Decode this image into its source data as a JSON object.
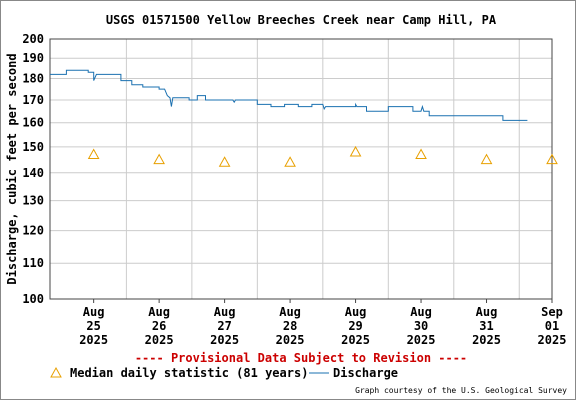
{
  "chart_data": {
    "type": "line",
    "title": "USGS 01571500 Yellow Breeches Creek near Camp Hill, PA",
    "ylabel": "Discharge, cubic feet per second",
    "xlabel": "",
    "y_scale": "log",
    "ylim": [
      100,
      200
    ],
    "y_ticks": [
      "100",
      "110",
      "120",
      "130",
      "140",
      "150",
      "160",
      "170",
      "180",
      "190",
      "200"
    ],
    "x_domain_days": [
      "2025-08-24T20:00",
      "2025-09-01T12:00"
    ],
    "x_ticks": [
      {
        "date": "2025-08-25T12:00",
        "label": [
          "Aug",
          "25",
          "2025"
        ]
      },
      {
        "date": "2025-08-26T12:00",
        "label": [
          "Aug",
          "26",
          "2025"
        ]
      },
      {
        "date": "2025-08-27T12:00",
        "label": [
          "Aug",
          "27",
          "2025"
        ]
      },
      {
        "date": "2025-08-28T12:00",
        "label": [
          "Aug",
          "28",
          "2025"
        ]
      },
      {
        "date": "2025-08-29T12:00",
        "label": [
          "Aug",
          "29",
          "2025"
        ]
      },
      {
        "date": "2025-08-30T12:00",
        "label": [
          "Aug",
          "30",
          "2025"
        ]
      },
      {
        "date": "2025-08-31T12:00",
        "label": [
          "Aug",
          "31",
          "2025"
        ]
      },
      {
        "date": "2025-09-01T12:00",
        "label": [
          "Sep",
          "01",
          "2025"
        ]
      }
    ],
    "grid": true,
    "series": [
      {
        "name": "Discharge",
        "color": "#1a70b0",
        "points": [
          [
            "2025-08-24T20:00",
            182
          ],
          [
            "2025-08-25T02:00",
            182
          ],
          [
            "2025-08-25T02:00",
            184
          ],
          [
            "2025-08-25T10:00",
            184
          ],
          [
            "2025-08-25T10:00",
            183
          ],
          [
            "2025-08-25T12:00",
            183
          ],
          [
            "2025-08-25T12:00",
            179
          ],
          [
            "2025-08-25T13:00",
            182
          ],
          [
            "2025-08-25T22:00",
            182
          ],
          [
            "2025-08-25T22:00",
            179
          ],
          [
            "2025-08-26T02:00",
            179
          ],
          [
            "2025-08-26T02:00",
            177
          ],
          [
            "2025-08-26T06:00",
            177
          ],
          [
            "2025-08-26T06:00",
            176
          ],
          [
            "2025-08-26T12:00",
            176
          ],
          [
            "2025-08-26T12:00",
            175
          ],
          [
            "2025-08-26T14:00",
            175
          ],
          [
            "2025-08-26T15:00",
            172
          ],
          [
            "2025-08-26T16:00",
            171
          ],
          [
            "2025-08-26T16:30",
            167
          ],
          [
            "2025-08-26T17:00",
            171
          ],
          [
            "2025-08-26T23:00",
            171
          ],
          [
            "2025-08-26T23:00",
            170
          ],
          [
            "2025-08-27T02:00",
            170
          ],
          [
            "2025-08-27T02:00",
            172
          ],
          [
            "2025-08-27T05:00",
            172
          ],
          [
            "2025-08-27T05:00",
            170
          ],
          [
            "2025-08-27T15:00",
            170
          ],
          [
            "2025-08-27T15:30",
            169
          ],
          [
            "2025-08-27T16:00",
            170
          ],
          [
            "2025-08-28T00:00",
            170
          ],
          [
            "2025-08-28T00:00",
            168
          ],
          [
            "2025-08-28T05:00",
            168
          ],
          [
            "2025-08-28T05:00",
            167
          ],
          [
            "2025-08-28T10:00",
            167
          ],
          [
            "2025-08-28T10:00",
            168
          ],
          [
            "2025-08-28T15:00",
            168
          ],
          [
            "2025-08-28T15:00",
            167
          ],
          [
            "2025-08-28T20:00",
            167
          ],
          [
            "2025-08-28T20:00",
            168
          ],
          [
            "2025-08-29T00:00",
            168
          ],
          [
            "2025-08-29T00:30",
            166
          ],
          [
            "2025-08-29T01:00",
            167
          ],
          [
            "2025-08-29T12:00",
            167
          ],
          [
            "2025-08-29T12:00",
            168
          ],
          [
            "2025-08-29T12:30",
            167
          ],
          [
            "2025-08-29T16:00",
            167
          ],
          [
            "2025-08-29T16:00",
            165
          ],
          [
            "2025-08-30T00:00",
            165
          ],
          [
            "2025-08-30T00:00",
            167
          ],
          [
            "2025-08-30T09:00",
            167
          ],
          [
            "2025-08-30T09:00",
            165
          ],
          [
            "2025-08-30T12:00",
            165
          ],
          [
            "2025-08-30T12:30",
            167
          ],
          [
            "2025-08-30T13:00",
            165
          ],
          [
            "2025-08-30T15:00",
            165
          ],
          [
            "2025-08-30T15:00",
            163
          ],
          [
            "2025-08-31T18:00",
            163
          ],
          [
            "2025-08-31T18:00",
            161
          ],
          [
            "2025-09-01T03:00",
            161
          ]
        ]
      },
      {
        "name": "Median daily statistic (81 years)",
        "color": "#e8a000",
        "marker": "triangle",
        "points": [
          [
            "2025-08-25T12:00",
            147
          ],
          [
            "2025-08-26T12:00",
            145
          ],
          [
            "2025-08-27T12:00",
            144
          ],
          [
            "2025-08-28T12:00",
            144
          ],
          [
            "2025-08-29T12:00",
            148
          ],
          [
            "2025-08-30T12:00",
            147
          ],
          [
            "2025-08-31T12:00",
            145
          ],
          [
            "2025-09-01T12:00",
            145
          ]
        ]
      }
    ],
    "legend_placement": "bottom-left",
    "legend_entries": [
      {
        "label": "Median daily statistic (81 years)",
        "kind": "triangle",
        "color": "#e8a000"
      },
      {
        "label": "Discharge",
        "kind": "line",
        "color": "#1a70b0"
      }
    ],
    "provisional_note": "---- Provisional Data Subject to Revision ----",
    "courtesy": "Graph courtesy of the U.S. Geological Survey"
  }
}
